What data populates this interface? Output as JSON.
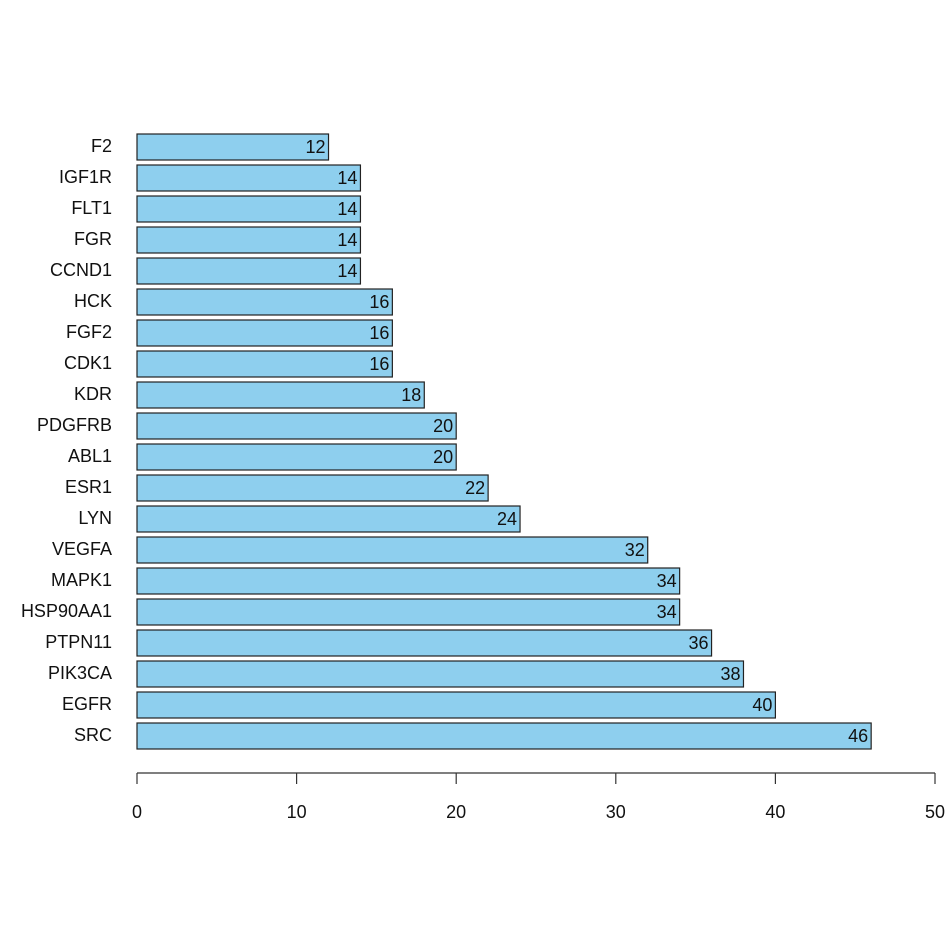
{
  "chart_data": {
    "type": "bar",
    "orientation": "horizontal",
    "categories": [
      "F2",
      "IGF1R",
      "FLT1",
      "FGR",
      "CCND1",
      "HCK",
      "FGF2",
      "CDK1",
      "KDR",
      "PDGFRB",
      "ABL1",
      "ESR1",
      "LYN",
      "VEGFA",
      "MAPK1",
      "HSP90AA1",
      "PTPN11",
      "PIK3CA",
      "EGFR",
      "SRC"
    ],
    "values": [
      12,
      14,
      14,
      14,
      14,
      16,
      16,
      16,
      18,
      20,
      20,
      22,
      24,
      32,
      34,
      34,
      36,
      38,
      40,
      46
    ],
    "color": "#8ecfee",
    "data_labels": true,
    "xlim": [
      0,
      50
    ],
    "xticks": [
      0,
      10,
      20,
      30,
      40,
      50
    ]
  }
}
